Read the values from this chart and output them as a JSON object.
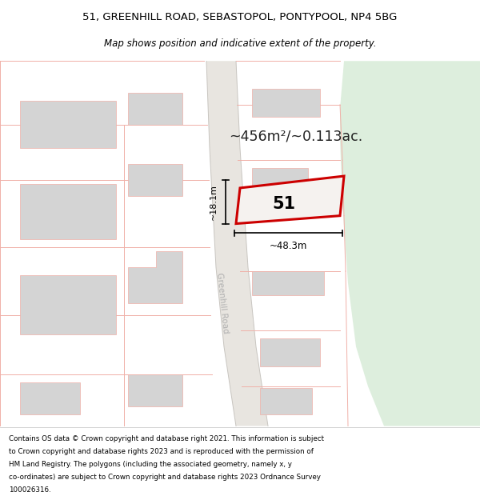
{
  "title_line1": "51, GREENHILL ROAD, SEBASTOPOL, PONTYPOOL, NP4 5BG",
  "title_line2": "Map shows position and indicative extent of the property.",
  "area_label": "~456m²/~0.113ac.",
  "width_label": "~48.3m",
  "height_label": "~18.1m",
  "number_label": "51",
  "road_label": "Greenhill Road",
  "map_bg": "#f2f0ed",
  "highlight_color": "#cc0000",
  "road_line_color": "#f0b0a8",
  "green_area_color": "#ddeedd",
  "road_fill": "#e8e5e0",
  "building_fill": "#d4d4d4",
  "footer_lines": [
    "Contains OS data © Crown copyright and database right 2021. This information is subject",
    "to Crown copyright and database rights 2023 and is reproduced with the permission of",
    "HM Land Registry. The polygons (including the associated geometry, namely x, y",
    "co-ordinates) are subject to Crown copyright and database rights 2023 Ordnance Survey",
    "100026316."
  ]
}
